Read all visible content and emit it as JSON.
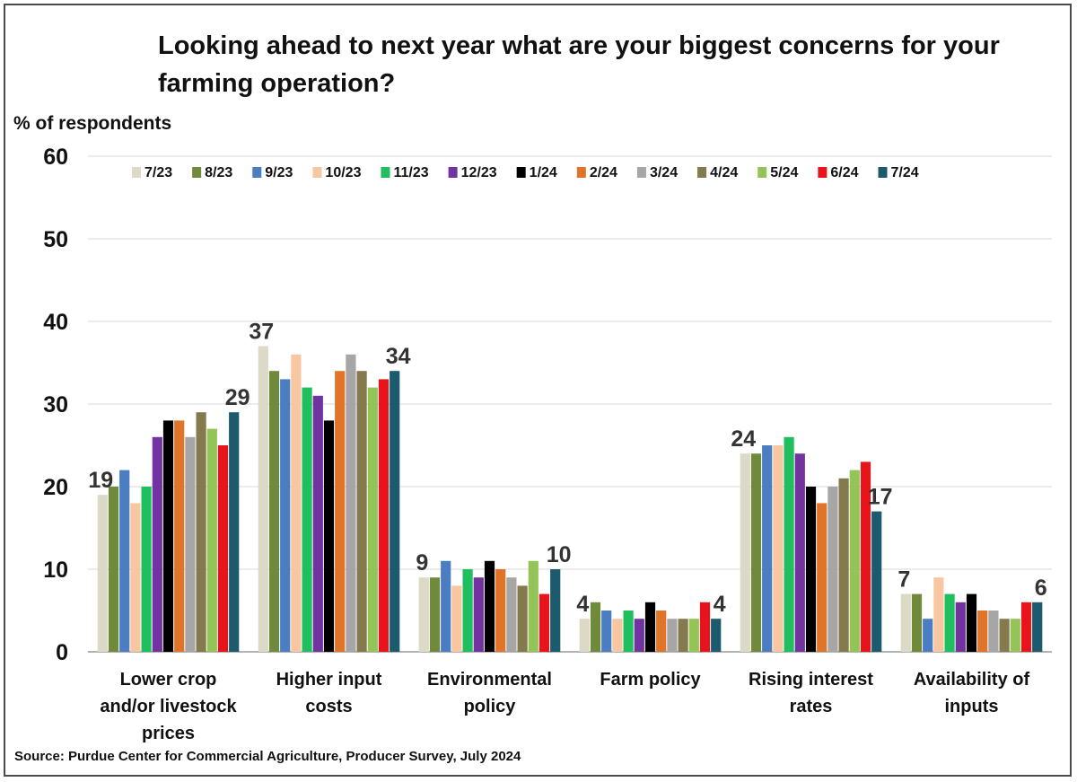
{
  "chart_data": {
    "type": "bar",
    "title": "Looking ahead to next year what are your biggest concerns for your farming operation?",
    "ylabel": "% of respondents",
    "xlabel": "",
    "ylim": [
      0,
      60
    ],
    "yticks": [
      0,
      10,
      20,
      30,
      40,
      50,
      60
    ],
    "grid": true,
    "legend_position": "top",
    "categories": [
      [
        "Lower crop",
        "and/or livestock",
        "prices"
      ],
      [
        "Higher input",
        "costs"
      ],
      [
        "Environmental",
        "policy"
      ],
      [
        "Farm policy"
      ],
      [
        "Rising interest",
        "rates"
      ],
      [
        "Availability of",
        "inputs"
      ]
    ],
    "series": [
      {
        "name": "7/23",
        "color": "#dcd9c6",
        "values": [
          19,
          37,
          9,
          4,
          24,
          7
        ]
      },
      {
        "name": "8/23",
        "color": "#6e8a3a",
        "values": [
          20,
          34,
          9,
          6,
          24,
          7
        ]
      },
      {
        "name": "9/23",
        "color": "#4a7dc2",
        "values": [
          22,
          33,
          11,
          5,
          25,
          4
        ]
      },
      {
        "name": "10/23",
        "color": "#f8c6a0",
        "values": [
          18,
          36,
          8,
          4,
          25,
          9
        ]
      },
      {
        "name": "11/23",
        "color": "#1fbf5f",
        "values": [
          20,
          32,
          10,
          5,
          26,
          7
        ]
      },
      {
        "name": "12/23",
        "color": "#7232a0",
        "values": [
          26,
          31,
          9,
          4,
          24,
          6
        ]
      },
      {
        "name": "1/24",
        "color": "#000000",
        "values": [
          28,
          28,
          11,
          6,
          20,
          7
        ]
      },
      {
        "name": "2/24",
        "color": "#e0752a",
        "values": [
          28,
          34,
          10,
          5,
          18,
          5
        ]
      },
      {
        "name": "3/24",
        "color": "#a6a6a6",
        "values": [
          26,
          36,
          9,
          4,
          20,
          5
        ]
      },
      {
        "name": "4/24",
        "color": "#857a4e",
        "values": [
          29,
          34,
          8,
          4,
          21,
          4
        ]
      },
      {
        "name": "5/24",
        "color": "#94c457",
        "values": [
          27,
          32,
          11,
          4,
          22,
          4
        ]
      },
      {
        "name": "6/24",
        "color": "#e8141b",
        "values": [
          25,
          33,
          7,
          6,
          23,
          6
        ]
      },
      {
        "name": "7/24",
        "color": "#1c5a6e",
        "values": [
          29,
          34,
          10,
          4,
          17,
          6
        ]
      }
    ],
    "data_labels": [
      {
        "category": 0,
        "series": 0,
        "text": "19"
      },
      {
        "category": 0,
        "series": 12,
        "text": "29"
      },
      {
        "category": 1,
        "series": 0,
        "text": "37"
      },
      {
        "category": 1,
        "series": 12,
        "text": "34"
      },
      {
        "category": 2,
        "series": 0,
        "text": "9"
      },
      {
        "category": 2,
        "series": 12,
        "text": "10"
      },
      {
        "category": 3,
        "series": 0,
        "text": "4"
      },
      {
        "category": 3,
        "series": 12,
        "text": "4"
      },
      {
        "category": 4,
        "series": 0,
        "text": "24"
      },
      {
        "category": 4,
        "series": 12,
        "text": "17"
      },
      {
        "category": 5,
        "series": 0,
        "text": "7"
      },
      {
        "category": 5,
        "series": 12,
        "text": "6"
      }
    ]
  },
  "source": "Source: Purdue Center for Commercial Agriculture, Producer Survey, July 2024"
}
